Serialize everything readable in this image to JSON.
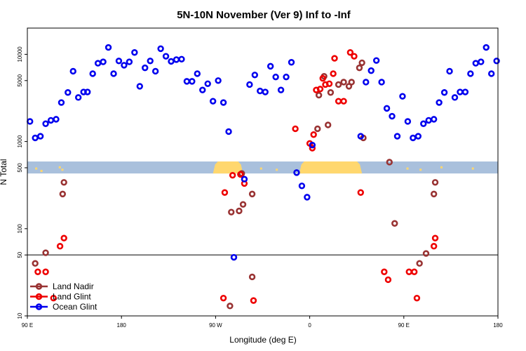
{
  "chart_data": {
    "type": "scatter",
    "title": "5N-10N November (Ver 9)   Inf to -Inf",
    "xlabel": "Longitude (deg E)",
    "ylabel": "N Total",
    "xlim": [
      0,
      360
    ],
    "ylim": [
      10,
      20000
    ],
    "yscale": "log",
    "grid": false,
    "legend_position": "bottom-left",
    "x_ticks": [
      {
        "value": 0,
        "label": "90 E"
      },
      {
        "value": 72,
        "label": "180"
      },
      {
        "value": 144,
        "label": "90 W"
      },
      {
        "value": 216,
        "label": "0"
      },
      {
        "value": 288,
        "label": "90 E"
      },
      {
        "value": 360,
        "label": "180"
      }
    ],
    "y_ticks": [
      {
        "value": 10,
        "label": "10"
      },
      {
        "value": 50,
        "label": "50"
      },
      {
        "value": 100,
        "label": "100"
      },
      {
        "value": 500,
        "label": "500"
      },
      {
        "value": 1000,
        "label": "1000"
      },
      {
        "value": 5000,
        "label": "5000"
      },
      {
        "value": 10000,
        "label": "10000"
      }
    ],
    "reference_line": 50,
    "land_band": {
      "y_low": 430,
      "y_high": 590,
      "ocean_color": "#a9c0dc",
      "land_color": "#ffd76e"
    },
    "series": [
      {
        "name": "Land Nadir",
        "color": "#993333",
        "points": [
          [
            6,
            40
          ],
          [
            14,
            53
          ],
          [
            27,
            250
          ],
          [
            28,
            340
          ],
          [
            156,
            155
          ],
          [
            164,
            430
          ],
          [
            165,
            190
          ],
          [
            172,
            250
          ],
          [
            172,
            28
          ],
          [
            155,
            13
          ],
          [
            162,
            160
          ],
          [
            230,
            1550
          ],
          [
            222,
            1400
          ],
          [
            223,
            3400
          ],
          [
            227,
            5600
          ],
          [
            232,
            3650
          ],
          [
            238,
            4500
          ],
          [
            242,
            4800
          ],
          [
            246,
            4300
          ],
          [
            248,
            4800
          ],
          [
            254,
            7000
          ],
          [
            256,
            8000
          ],
          [
            257,
            1100
          ],
          [
            277,
            580
          ],
          [
            281,
            115
          ],
          [
            300,
            40
          ],
          [
            305,
            52
          ],
          [
            311,
            250
          ],
          [
            312,
            340
          ]
        ]
      },
      {
        "name": "Land Glint",
        "color": "#ee0000",
        "points": [
          [
            8,
            32
          ],
          [
            14,
            32
          ],
          [
            20,
            16
          ],
          [
            25,
            63
          ],
          [
            28,
            78
          ],
          [
            150,
            16
          ],
          [
            151,
            260
          ],
          [
            157,
            410
          ],
          [
            163,
            420
          ],
          [
            166,
            330
          ],
          [
            173,
            15
          ],
          [
            205,
            1400
          ],
          [
            216,
            950
          ],
          [
            219,
            1200
          ],
          [
            218,
            840
          ],
          [
            221,
            3900
          ],
          [
            224,
            4000
          ],
          [
            226,
            5300
          ],
          [
            228,
            4500
          ],
          [
            231,
            4600
          ],
          [
            234,
            6000
          ],
          [
            235,
            9000
          ],
          [
            238,
            2900
          ],
          [
            242,
            2900
          ],
          [
            247,
            10500
          ],
          [
            250,
            9500
          ],
          [
            255,
            260
          ],
          [
            273,
            32
          ],
          [
            276,
            26
          ],
          [
            292,
            32
          ],
          [
            296,
            32
          ],
          [
            298,
            16
          ],
          [
            311,
            63
          ],
          [
            312,
            78
          ]
        ]
      },
      {
        "name": "Ocean Glint",
        "color": "#0000ee",
        "points": [
          [
            2,
            1700
          ],
          [
            6,
            1100
          ],
          [
            10,
            1150
          ],
          [
            14,
            1600
          ],
          [
            18,
            1750
          ],
          [
            22,
            1800
          ],
          [
            26,
            2800
          ],
          [
            31,
            3650
          ],
          [
            35,
            6400
          ],
          [
            39,
            3200
          ],
          [
            43,
            3700
          ],
          [
            46,
            3700
          ],
          [
            50,
            6000
          ],
          [
            54,
            7900
          ],
          [
            58,
            8200
          ],
          [
            62,
            12000
          ],
          [
            66,
            6000
          ],
          [
            70,
            8400
          ],
          [
            74,
            7500
          ],
          [
            78,
            8200
          ],
          [
            82,
            10500
          ],
          [
            86,
            4300
          ],
          [
            90,
            7000
          ],
          [
            94,
            8400
          ],
          [
            98,
            6400
          ],
          [
            102,
            11600
          ],
          [
            106,
            9500
          ],
          [
            110,
            8300
          ],
          [
            114,
            8700
          ],
          [
            118,
            8800
          ],
          [
            122,
            4900
          ],
          [
            126,
            4900
          ],
          [
            130,
            6000
          ],
          [
            134,
            3900
          ],
          [
            138,
            4600
          ],
          [
            142,
            2900
          ],
          [
            146,
            5000
          ],
          [
            150,
            2800
          ],
          [
            154,
            1300
          ],
          [
            158,
            47
          ],
          [
            166,
            370
          ],
          [
            170,
            4500
          ],
          [
            174,
            5800
          ],
          [
            178,
            3800
          ],
          [
            182,
            3700
          ],
          [
            186,
            7300
          ],
          [
            190,
            5500
          ],
          [
            194,
            3900
          ],
          [
            198,
            5500
          ],
          [
            202,
            8100
          ],
          [
            206,
            440
          ],
          [
            210,
            310
          ],
          [
            214,
            230
          ],
          [
            218,
            910
          ],
          [
            255,
            1150
          ],
          [
            259,
            4800
          ],
          [
            263,
            6500
          ],
          [
            267,
            8500
          ],
          [
            271,
            4800
          ],
          [
            275,
            2400
          ],
          [
            279,
            1950
          ],
          [
            283,
            1150
          ],
          [
            287,
            3300
          ],
          [
            291,
            1700
          ],
          [
            295,
            1100
          ],
          [
            299,
            1150
          ],
          [
            303,
            1600
          ],
          [
            307,
            1750
          ],
          [
            311,
            1800
          ],
          [
            315,
            2800
          ],
          [
            319,
            3650
          ],
          [
            323,
            6400
          ],
          [
            327,
            3200
          ],
          [
            331,
            3700
          ],
          [
            335,
            3700
          ],
          [
            339,
            6000
          ],
          [
            343,
            7900
          ],
          [
            347,
            8200
          ],
          [
            351,
            12000
          ],
          [
            355,
            6000
          ],
          [
            359,
            8400
          ]
        ]
      }
    ]
  }
}
